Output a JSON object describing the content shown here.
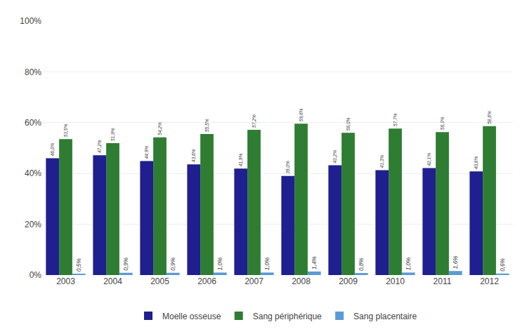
{
  "chart_data": {
    "type": "bar",
    "categories": [
      "2003",
      "2004",
      "2005",
      "2006",
      "2007",
      "2008",
      "2009",
      "2010",
      "2011",
      "2012"
    ],
    "series": [
      {
        "name": "Moelle osseuse",
        "color": "#1F1F8F",
        "values": [
          46.0,
          47.2,
          44.9,
          43.6,
          41.9,
          39.0,
          43.2,
          41.3,
          42.1,
          40.8
        ],
        "value_labels": [
          "46,0%",
          "47,2%",
          "44,9%",
          "43,6%",
          "41,9%",
          "39,0%",
          "43,2%",
          "41,3%",
          "42,1%",
          "40,8%"
        ]
      },
      {
        "name": "Sang périphérique",
        "color": "#2E7D32",
        "values": [
          53.5,
          51.9,
          54.2,
          55.5,
          57.2,
          59.6,
          56.0,
          57.7,
          56.3,
          58.6
        ],
        "value_labels": [
          "53,5%",
          "51,9%",
          "54,2%",
          "55,5%",
          "57,2%",
          "59,6%",
          "56,0%",
          "57,7%",
          "56,3%",
          "58,6%"
        ]
      },
      {
        "name": "Sang placentaire",
        "color": "#5B9BD5",
        "values": [
          0.5,
          0.9,
          0.9,
          1.0,
          1.0,
          1.4,
          0.8,
          1.0,
          1.6,
          0.6
        ],
        "value_labels": [
          "0,5%",
          "0,9%",
          "0,9%",
          "1,0%",
          "1,0%",
          "1,4%",
          "0,8%",
          "1,0%",
          "1,6%",
          "0,6%"
        ]
      }
    ],
    "ylim": [
      0,
      100
    ],
    "yticks": [
      {
        "value": 0,
        "label": "0%"
      },
      {
        "value": 20,
        "label": "20%"
      },
      {
        "value": 40,
        "label": "40%"
      },
      {
        "value": 60,
        "label": "60%"
      },
      {
        "value": 80,
        "label": "80%"
      },
      {
        "value": 100,
        "label": "100%"
      }
    ],
    "grid": true,
    "legend": "bottom",
    "data_labels": true
  }
}
